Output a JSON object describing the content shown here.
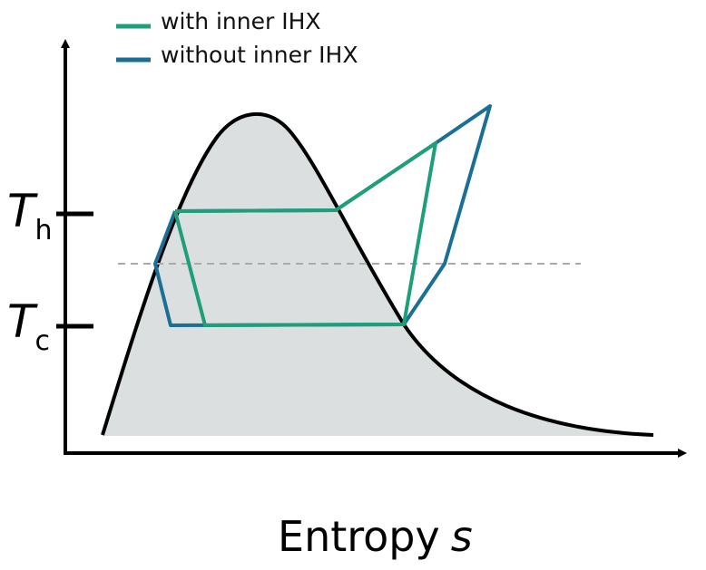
{
  "legend": {
    "items": [
      {
        "label": "with inner IHX",
        "color": "#1f9e7a"
      },
      {
        "label": "without inner IHX",
        "color": "#1a6f96"
      }
    ]
  },
  "y_ticks": {
    "hot": {
      "main": "T",
      "sub": "h"
    },
    "cold": {
      "main": "T",
      "sub": "c"
    }
  },
  "x_axis": {
    "label": "Entropy",
    "symbol": "s"
  },
  "colors": {
    "dome_fill": "#dcdfdf",
    "dome_stroke": "#000000",
    "axis": "#000000",
    "reference_line": "#aaaaaa",
    "with_ihx": "#1f9e7a",
    "without_ihx": "#1a6f96"
  }
}
